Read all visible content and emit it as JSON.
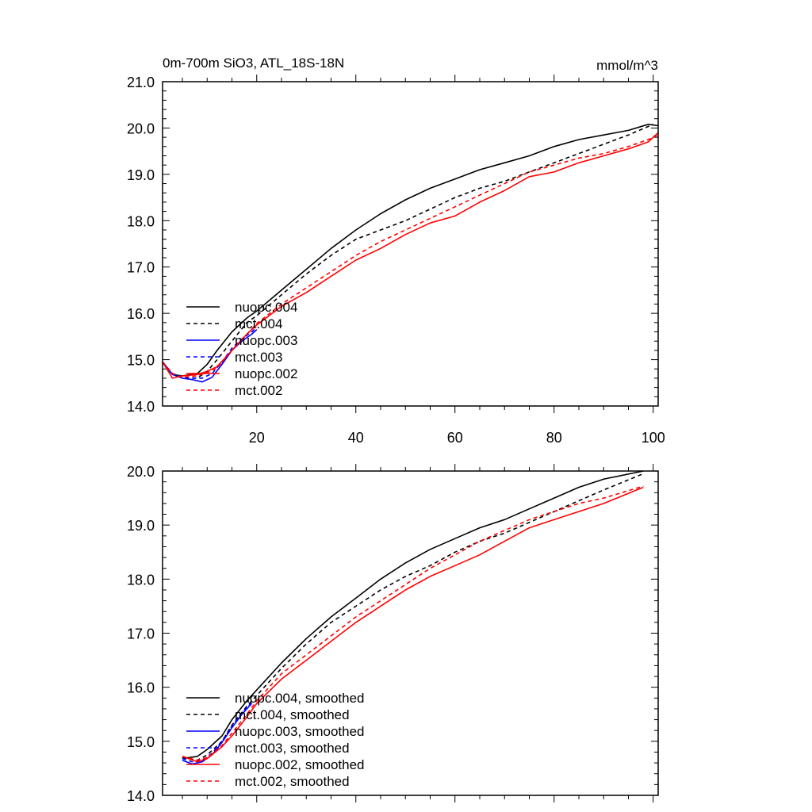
{
  "chart_data": [
    {
      "type": "line",
      "title": "0m-700m SiO3, ATL_18S-18N",
      "units": "mmol/m^3",
      "xlim": [
        1,
        101
      ],
      "ylim": [
        14.0,
        21.0
      ],
      "xticks": [
        20,
        40,
        60,
        80,
        100
      ],
      "yticks": [
        "14.0",
        "15.0",
        "16.0",
        "17.0",
        "18.0",
        "19.0",
        "20.0",
        "21.0"
      ],
      "grid": false,
      "legend_position": "bottom-left",
      "series": [
        {
          "name": "nuopc.004",
          "color": "#000000",
          "dash": "solid",
          "x": [
            1,
            3,
            5,
            8,
            10,
            12,
            15,
            18,
            20,
            25,
            30,
            35,
            40,
            45,
            50,
            55,
            60,
            65,
            70,
            75,
            80,
            85,
            90,
            95,
            99,
            101
          ],
          "y": [
            14.95,
            14.68,
            14.65,
            14.7,
            14.9,
            15.2,
            15.6,
            15.9,
            16.05,
            16.5,
            16.95,
            17.4,
            17.8,
            18.15,
            18.45,
            18.7,
            18.9,
            19.1,
            19.25,
            19.4,
            19.6,
            19.75,
            19.85,
            19.95,
            20.08,
            20.05
          ]
        },
        {
          "name": "mct.004",
          "color": "#000000",
          "dash": "dashed",
          "x": [
            1,
            3,
            5,
            8,
            10,
            12,
            15,
            18,
            20,
            25,
            30,
            35,
            40,
            45,
            50,
            55,
            60,
            65,
            70,
            75,
            80,
            85,
            90,
            95,
            100
          ],
          "y": [
            14.95,
            14.7,
            14.62,
            14.6,
            14.75,
            15.0,
            15.4,
            15.8,
            15.95,
            16.4,
            16.85,
            17.25,
            17.6,
            17.8,
            18.0,
            18.25,
            18.5,
            18.7,
            18.85,
            19.05,
            19.25,
            19.45,
            19.65,
            19.85,
            20.08
          ]
        },
        {
          "name": "nuopc.003",
          "color": "#0000ff",
          "dash": "solid",
          "x": [
            1,
            3,
            5,
            7,
            9,
            11,
            13,
            15,
            17,
            19,
            20
          ],
          "y": [
            14.95,
            14.68,
            14.6,
            14.57,
            14.52,
            14.62,
            14.9,
            15.2,
            15.4,
            15.55,
            15.65
          ]
        },
        {
          "name": "mct.003",
          "color": "#0000ff",
          "dash": "dashed",
          "x": [
            1,
            3,
            5,
            7,
            9,
            11,
            13,
            15,
            17,
            19,
            20
          ],
          "y": [
            14.95,
            14.7,
            14.62,
            14.6,
            14.6,
            14.7,
            14.95,
            15.25,
            15.45,
            15.6,
            15.7
          ]
        },
        {
          "name": "nuopc.002",
          "color": "#ff0000",
          "dash": "solid",
          "x": [
            1,
            3,
            5,
            8,
            10,
            12,
            15,
            18,
            20,
            25,
            30,
            35,
            40,
            45,
            50,
            55,
            60,
            65,
            70,
            75,
            80,
            85,
            90,
            95,
            99,
            101
          ],
          "y": [
            14.95,
            14.6,
            14.65,
            14.68,
            14.75,
            14.85,
            15.2,
            15.55,
            15.75,
            16.15,
            16.45,
            16.8,
            17.15,
            17.4,
            17.7,
            17.95,
            18.1,
            18.4,
            18.65,
            18.95,
            19.05,
            19.25,
            19.4,
            19.55,
            19.7,
            19.9
          ]
        },
        {
          "name": "mct.002",
          "color": "#ff0000",
          "dash": "dashed",
          "x": [
            1,
            3,
            5,
            8,
            10,
            12,
            15,
            18,
            20,
            25,
            30,
            35,
            40,
            45,
            50,
            55,
            60,
            65,
            70,
            75,
            80,
            85,
            90,
            95,
            99,
            101
          ],
          "y": [
            14.95,
            14.7,
            14.62,
            14.65,
            14.72,
            14.82,
            15.2,
            15.55,
            15.78,
            16.2,
            16.55,
            16.9,
            17.25,
            17.55,
            17.8,
            18.05,
            18.3,
            18.55,
            18.8,
            19.05,
            19.2,
            19.35,
            19.45,
            19.6,
            19.75,
            19.85
          ]
        }
      ]
    },
    {
      "type": "line",
      "xlim": [
        1,
        101
      ],
      "ylim": [
        14.0,
        20.0
      ],
      "yticks": [
        "14.0",
        "15.0",
        "16.0",
        "17.0",
        "18.0",
        "19.0",
        "20.0"
      ],
      "grid": false,
      "legend_position": "bottom-left",
      "series": [
        {
          "name": "nuopc.004, smoothed",
          "color": "#000000",
          "dash": "solid",
          "x": [
            5,
            8,
            10,
            13,
            15,
            18,
            20,
            25,
            30,
            35,
            40,
            45,
            50,
            55,
            60,
            65,
            70,
            75,
            80,
            85,
            90,
            98
          ],
          "y": [
            14.68,
            14.72,
            14.85,
            15.1,
            15.4,
            15.75,
            15.95,
            16.45,
            16.9,
            17.3,
            17.65,
            18.0,
            18.3,
            18.55,
            18.75,
            18.95,
            19.1,
            19.3,
            19.5,
            19.7,
            19.85,
            20.0
          ]
        },
        {
          "name": "mct.004, smoothed",
          "color": "#000000",
          "dash": "dashed",
          "x": [
            5,
            8,
            10,
            13,
            15,
            18,
            20,
            25,
            30,
            35,
            40,
            45,
            50,
            55,
            60,
            65,
            70,
            75,
            80,
            85,
            90,
            98
          ],
          "y": [
            14.7,
            14.65,
            14.75,
            15.0,
            15.3,
            15.65,
            15.85,
            16.35,
            16.8,
            17.2,
            17.5,
            17.8,
            18.05,
            18.25,
            18.5,
            18.7,
            18.85,
            19.05,
            19.25,
            19.45,
            19.65,
            19.95
          ]
        },
        {
          "name": "nuopc.003, smoothed",
          "color": "#0000ff",
          "dash": "solid",
          "x": [
            5,
            7,
            9,
            11,
            13,
            15,
            17,
            19
          ],
          "y": [
            14.65,
            14.58,
            14.62,
            14.75,
            14.98,
            15.25,
            15.5,
            15.7
          ]
        },
        {
          "name": "mct.003, smoothed",
          "color": "#0000ff",
          "dash": "dashed",
          "x": [
            5,
            7,
            9,
            11,
            13,
            15,
            17,
            19
          ],
          "y": [
            14.68,
            14.62,
            14.65,
            14.78,
            15.0,
            15.28,
            15.52,
            15.72
          ]
        },
        {
          "name": "nuopc.002, smoothed",
          "color": "#ff0000",
          "dash": "solid",
          "x": [
            5,
            8,
            10,
            13,
            15,
            18,
            20,
            25,
            30,
            35,
            40,
            45,
            50,
            55,
            60,
            65,
            70,
            75,
            80,
            85,
            90,
            98
          ],
          "y": [
            14.72,
            14.62,
            14.68,
            14.9,
            15.1,
            15.45,
            15.7,
            16.15,
            16.5,
            16.85,
            17.2,
            17.5,
            17.8,
            18.05,
            18.25,
            18.45,
            18.7,
            18.95,
            19.1,
            19.25,
            19.4,
            19.7
          ]
        },
        {
          "name": "mct.002, smoothed",
          "color": "#ff0000",
          "dash": "dashed",
          "x": [
            5,
            8,
            10,
            13,
            15,
            18,
            20,
            25,
            30,
            35,
            40,
            45,
            50,
            55,
            60,
            65,
            70,
            75,
            80,
            85,
            90,
            98
          ],
          "y": [
            14.72,
            14.65,
            14.7,
            14.92,
            15.15,
            15.5,
            15.75,
            16.25,
            16.6,
            16.95,
            17.3,
            17.6,
            17.9,
            18.2,
            18.45,
            18.7,
            18.9,
            19.1,
            19.25,
            19.4,
            19.5,
            19.72
          ]
        }
      ]
    }
  ]
}
